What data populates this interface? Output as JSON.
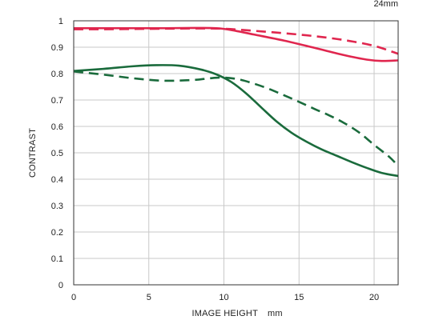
{
  "chart_data": {
    "type": "line",
    "title": "",
    "corner_label": "24mm",
    "xlabel": "IMAGE HEIGHT",
    "xunit": "mm",
    "ylabel": "CONTRAST",
    "xlim": [
      0,
      21.6
    ],
    "ylim": [
      0,
      1
    ],
    "x_ticks": [
      0,
      5,
      10,
      15,
      20
    ],
    "y_ticks": [
      0,
      0.1,
      0.2,
      0.3,
      0.4,
      0.5,
      0.6,
      0.7,
      0.8,
      0.9,
      1
    ],
    "y_tick_labels": [
      "0",
      "0.1",
      "0.2",
      "0.3",
      "0.4",
      "0.5",
      "0.6",
      "0.7",
      "0.8",
      "0.9",
      "1"
    ],
    "grid": true,
    "legend": "none",
    "series": [
      {
        "color": "#e0264e",
        "dash": "solid",
        "x": [
          0,
          2,
          4,
          6,
          8,
          9.5,
          10.5,
          12,
          14,
          16,
          18,
          19.5,
          20.5,
          21.6
        ],
        "y": [
          0.972,
          0.972,
          0.972,
          0.972,
          0.973,
          0.972,
          0.965,
          0.948,
          0.925,
          0.898,
          0.87,
          0.853,
          0.848,
          0.85
        ]
      },
      {
        "color": "#e0264e",
        "dash": "dashed",
        "x": [
          0,
          2,
          4,
          6,
          8,
          10,
          12,
          14,
          16,
          18,
          20,
          21.6
        ],
        "y": [
          0.968,
          0.968,
          0.969,
          0.97,
          0.971,
          0.97,
          0.962,
          0.953,
          0.942,
          0.927,
          0.905,
          0.875
        ]
      },
      {
        "color": "#1a6b3c",
        "dash": "solid",
        "x": [
          0,
          2,
          4,
          5.5,
          7,
          8.5,
          9.5,
          10.5,
          11.5,
          12.5,
          13.5,
          14.5,
          15.5,
          16.5,
          17.5,
          18.5,
          19.5,
          20.5,
          21.6
        ],
        "y": [
          0.81,
          0.818,
          0.828,
          0.832,
          0.83,
          0.815,
          0.797,
          0.768,
          0.724,
          0.671,
          0.619,
          0.576,
          0.542,
          0.513,
          0.489,
          0.465,
          0.443,
          0.424,
          0.412
        ]
      },
      {
        "color": "#1a6b3c",
        "dash": "dashed",
        "x": [
          0,
          2,
          4,
          6,
          8,
          9,
          10,
          11,
          12,
          13,
          14,
          15,
          16,
          17,
          18,
          19,
          20,
          21,
          21.6
        ],
        "y": [
          0.808,
          0.796,
          0.782,
          0.773,
          0.776,
          0.782,
          0.785,
          0.778,
          0.762,
          0.742,
          0.718,
          0.693,
          0.667,
          0.642,
          0.613,
          0.577,
          0.53,
          0.485,
          0.45
        ]
      }
    ]
  }
}
